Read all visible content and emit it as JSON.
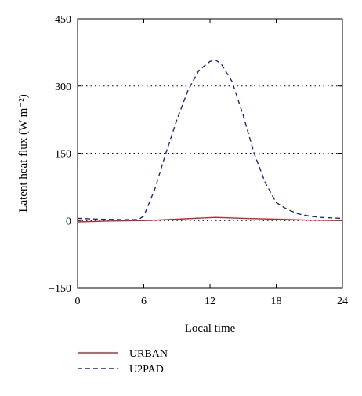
{
  "chart_data": {
    "type": "line",
    "title": "",
    "xlabel": "Local time",
    "ylabel": "Latent heat flux (W m⁻²)",
    "xlim": [
      0,
      24
    ],
    "ylim": [
      -150,
      450
    ],
    "xticks": [
      0,
      6,
      12,
      18,
      24
    ],
    "yticks": [
      -150,
      0,
      150,
      300,
      450
    ],
    "reference_lines_y": [
      0,
      150,
      300
    ],
    "legend_position": "bottom-left, below plot",
    "series": [
      {
        "name": "URBAN",
        "color": "#c0282d",
        "style": "solid",
        "x": [
          0,
          3,
          6,
          9,
          12.5,
          15,
          18,
          21,
          24
        ],
        "y": [
          -3,
          -1,
          0,
          3,
          7,
          5,
          3,
          1,
          0
        ]
      },
      {
        "name": "U2PAD",
        "color": "#22229a",
        "style": "dashed",
        "x": [
          0,
          2,
          4,
          5.5,
          6,
          7,
          8,
          9,
          10,
          11,
          12,
          12.5,
          13,
          14,
          15,
          16,
          17,
          18,
          19,
          20,
          21,
          22,
          23,
          24
        ],
        "y": [
          5,
          3,
          2,
          2,
          10,
          70,
          150,
          225,
          290,
          335,
          355,
          358,
          350,
          310,
          235,
          150,
          85,
          40,
          25,
          15,
          10,
          7,
          6,
          5
        ]
      }
    ]
  }
}
